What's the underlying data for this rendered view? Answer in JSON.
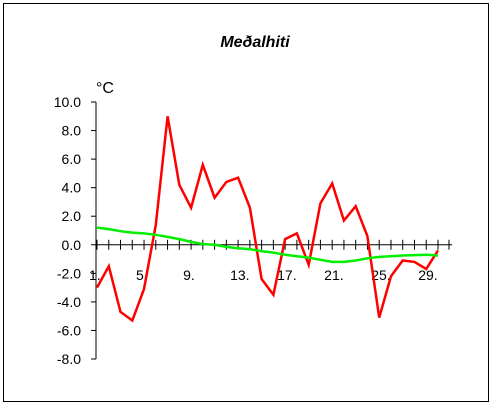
{
  "chart_data": {
    "type": "line",
    "title": "Meðalhiti",
    "ylabel": "°C",
    "xlabel": "",
    "ylim": [
      -8.0,
      10.0
    ],
    "y_ticks": [
      "10.0",
      "8.0",
      "6.0",
      "4.0",
      "2.0",
      "0.0",
      "-2.0",
      "-4.0",
      "-6.0",
      "-8.0"
    ],
    "x_tick_labels": [
      {
        "day": 1,
        "label": "1."
      },
      {
        "day": 5,
        "label": "5."
      },
      {
        "day": 9,
        "label": "9."
      },
      {
        "day": 13,
        "label": "13."
      },
      {
        "day": 17,
        "label": "17."
      },
      {
        "day": 21,
        "label": "21."
      },
      {
        "day": 25,
        "label": "25."
      },
      {
        "day": 29,
        "label": "29."
      }
    ],
    "x": [
      1,
      2,
      3,
      4,
      5,
      6,
      7,
      8,
      9,
      10,
      11,
      12,
      13,
      14,
      15,
      16,
      17,
      18,
      19,
      20,
      21,
      22,
      23,
      24,
      25,
      26,
      27,
      28,
      29,
      30
    ],
    "series": [
      {
        "color": "#ff0000",
        "values": [
          -3.0,
          -1.5,
          -4.7,
          -5.3,
          -3.1,
          1.4,
          9.0,
          4.2,
          2.6,
          5.6,
          3.3,
          4.4,
          4.7,
          2.6,
          -2.4,
          -3.5,
          0.4,
          0.8,
          -1.4,
          2.9,
          4.3,
          1.7,
          2.7,
          0.6,
          -5.1,
          -2.2,
          -1.1,
          -1.2,
          -1.7,
          -0.4
        ]
      },
      {
        "color": "#00ee00",
        "values": [
          1.2,
          1.1,
          0.95,
          0.85,
          0.8,
          0.7,
          0.55,
          0.4,
          0.2,
          0.05,
          0.0,
          -0.15,
          -0.25,
          -0.3,
          -0.45,
          -0.55,
          -0.7,
          -0.8,
          -0.9,
          -1.05,
          -1.2,
          -1.2,
          -1.1,
          -0.95,
          -0.85,
          -0.8,
          -0.75,
          -0.72,
          -0.7,
          -0.75
        ]
      }
    ],
    "grid": false,
    "legend": "none"
  }
}
